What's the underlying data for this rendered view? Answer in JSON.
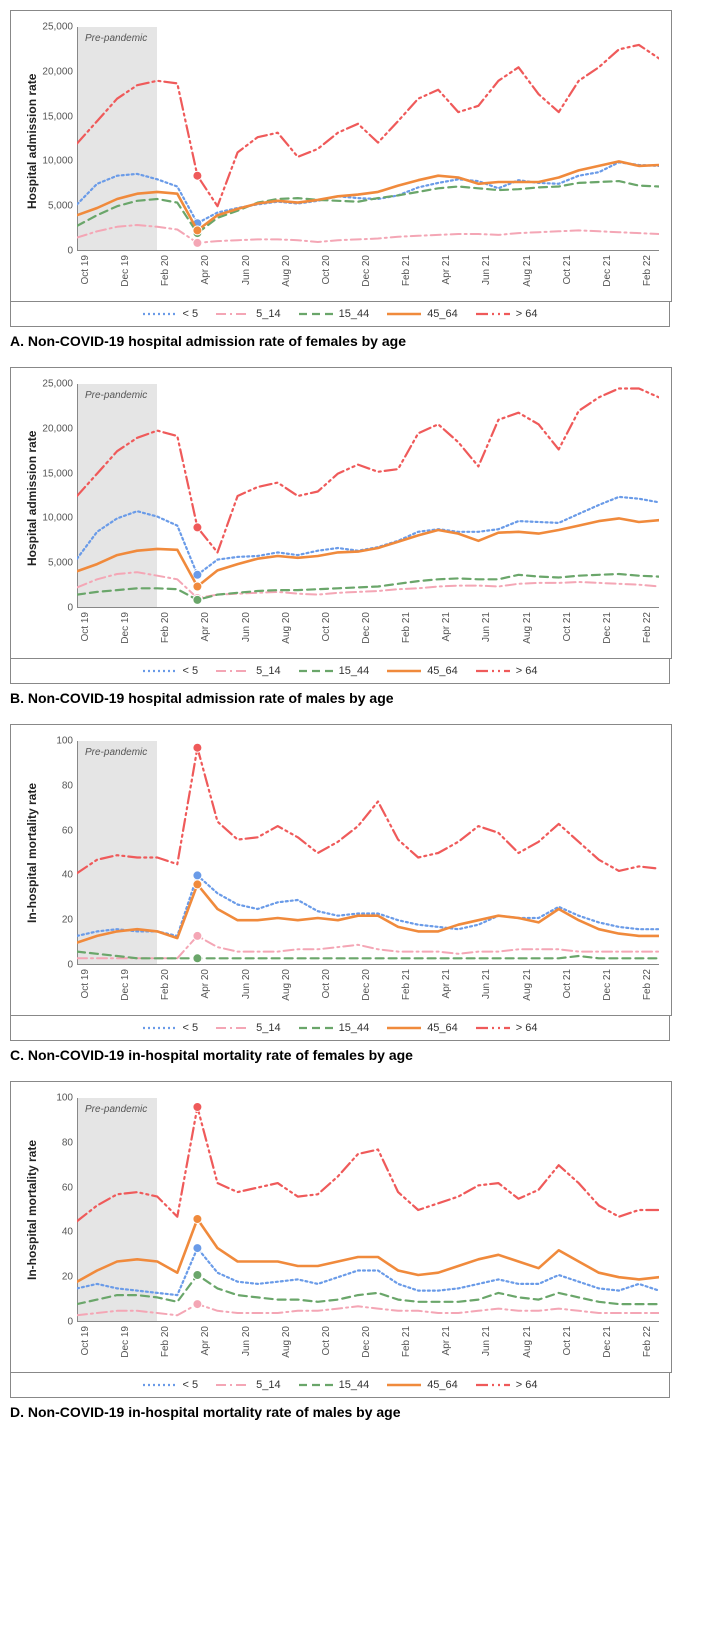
{
  "x_labels": [
    "Oct 19",
    "Dec 19",
    "Feb 20",
    "Apr 20",
    "Jun 20",
    "Aug 20",
    "Oct 20",
    "Dec 20",
    "Feb 21",
    "Apr 21",
    "Jun 21",
    "Aug 21",
    "Oct 21",
    "Dec 21",
    "Feb 22"
  ],
  "x_count": 30,
  "pre_pandemic_label": "Pre-pandemic",
  "pre_pandemic_end_index": 4,
  "series_meta": {
    "lt5": {
      "label": "< 5",
      "color": "#6a9be8",
      "style": "dot",
      "width": 2.2
    },
    "5_14": {
      "label": "5_14",
      "color": "#f4a6b5",
      "style": "dashdot",
      "width": 2
    },
    "15_44": {
      "label": "15_44",
      "color": "#6aa66a",
      "style": "dash",
      "width": 2.2
    },
    "45_64": {
      "label": "45_64",
      "color": "#f08a3c",
      "style": "solid",
      "width": 2.6
    },
    "gt64": {
      "label": "> 64",
      "color": "#ef5a5a",
      "style": "dashdot2",
      "width": 2.2
    }
  },
  "charts": [
    {
      "id": "A",
      "caption": "A. Non-COVID-19 hospital admission rate of females by age",
      "y_axis_title": "Hospital admission rate",
      "ylim": [
        0,
        25000
      ],
      "y_ticks": [
        0,
        5000,
        10000,
        15000,
        20000,
        25000
      ],
      "y_tick_format": "comma",
      "marker_index": 6,
      "series": {
        "lt5": [
          5200,
          7500,
          8400,
          8600,
          8000,
          7200,
          3100,
          4300,
          4800,
          5200,
          5500,
          5300,
          5600,
          6100,
          5900,
          5800,
          6200,
          7100,
          7600,
          8000,
          7800,
          7000,
          7900,
          7600,
          7500,
          8400,
          8800,
          9900,
          9600,
          9500
        ],
        "5_14": [
          1500,
          2200,
          2700,
          2900,
          2700,
          2400,
          900,
          1100,
          1200,
          1300,
          1300,
          1200,
          1000,
          1200,
          1300,
          1400,
          1600,
          1700,
          1800,
          1900,
          1900,
          1800,
          2000,
          2100,
          2200,
          2300,
          2200,
          2100,
          2000,
          1900
        ],
        "15_44": [
          2800,
          4000,
          5000,
          5600,
          5800,
          5400,
          2000,
          3700,
          4500,
          5400,
          5800,
          5900,
          5700,
          5600,
          5500,
          5900,
          6200,
          6600,
          7000,
          7200,
          7000,
          6800,
          6900,
          7100,
          7200,
          7600,
          7700,
          7800,
          7300,
          7200
        ],
        "45_64": [
          4000,
          4800,
          5800,
          6400,
          6600,
          6400,
          2300,
          4000,
          4700,
          5300,
          5600,
          5400,
          5700,
          6100,
          6300,
          6600,
          7300,
          7900,
          8400,
          8200,
          7500,
          7700,
          7700,
          7700,
          8200,
          9000,
          9500,
          10000,
          9500,
          9600
        ],
        "gt64": [
          12000,
          14500,
          17000,
          18500,
          19000,
          18700,
          8400,
          5000,
          11000,
          12700,
          13200,
          10500,
          11400,
          13200,
          14200,
          12100,
          14500,
          17000,
          18000,
          15500,
          16200,
          19000,
          20500,
          17500,
          15500,
          19000,
          20500,
          22500,
          23000,
          21500
        ]
      }
    },
    {
      "id": "B",
      "caption": "B. Non-COVID-19 hospital admission rate of males by age",
      "y_axis_title": "Hospital admission rate",
      "ylim": [
        0,
        25000
      ],
      "y_ticks": [
        0,
        5000,
        10000,
        15000,
        20000,
        25000
      ],
      "y_tick_format": "comma",
      "marker_index": 6,
      "series": {
        "lt5": [
          5500,
          8500,
          10000,
          10800,
          10200,
          9200,
          3700,
          5400,
          5700,
          5800,
          6200,
          5900,
          6400,
          6700,
          6400,
          6800,
          7500,
          8500,
          8800,
          8500,
          8500,
          8800,
          9700,
          9600,
          9500,
          10500,
          11500,
          12400,
          12200,
          11800
        ],
        "5_14": [
          2300,
          3200,
          3800,
          4000,
          3600,
          3200,
          1100,
          1500,
          1600,
          1700,
          1800,
          1600,
          1500,
          1700,
          1800,
          1900,
          2100,
          2200,
          2400,
          2500,
          2500,
          2400,
          2700,
          2800,
          2800,
          2900,
          2800,
          2700,
          2600,
          2400
        ],
        "15_44": [
          1500,
          1800,
          2000,
          2200,
          2200,
          2100,
          900,
          1500,
          1700,
          1900,
          2000,
          2000,
          2100,
          2200,
          2300,
          2400,
          2700,
          3000,
          3200,
          3300,
          3200,
          3200,
          3700,
          3500,
          3400,
          3600,
          3700,
          3800,
          3600,
          3500
        ],
        "45_64": [
          4100,
          4900,
          5900,
          6400,
          6600,
          6500,
          2400,
          4200,
          4900,
          5500,
          5800,
          5600,
          5800,
          6200,
          6300,
          6700,
          7400,
          8100,
          8700,
          8300,
          7500,
          8400,
          8500,
          8300,
          8700,
          9200,
          9700,
          10000,
          9600,
          9800
        ],
        "gt64": [
          12500,
          15000,
          17500,
          19000,
          19800,
          19200,
          9000,
          6200,
          12500,
          13500,
          14000,
          12500,
          13000,
          15000,
          16000,
          15200,
          15500,
          19500,
          20500,
          18500,
          15800,
          21000,
          21800,
          20500,
          17700,
          22000,
          23500,
          24500,
          24500,
          23500
        ]
      }
    },
    {
      "id": "C",
      "caption": "C. Non-COVID-19 in-hospital mortality rate of females by age",
      "y_axis_title": "In-hospital mortality rate",
      "ylim": [
        0,
        100
      ],
      "y_ticks": [
        0,
        20,
        40,
        60,
        80,
        100
      ],
      "y_tick_format": "plain",
      "marker_index": 6,
      "series": {
        "lt5": [
          13,
          15,
          16,
          15,
          15,
          13,
          40,
          32,
          27,
          25,
          28,
          29,
          24,
          22,
          23,
          23,
          20,
          18,
          17,
          16,
          18,
          22,
          21,
          21,
          26,
          22,
          19,
          17,
          16,
          16
        ],
        "5_14": [
          3,
          3,
          3,
          3,
          3,
          3,
          13,
          8,
          6,
          6,
          6,
          7,
          7,
          8,
          9,
          7,
          6,
          6,
          6,
          5,
          6,
          6,
          7,
          7,
          7,
          6,
          6,
          6,
          6,
          6
        ],
        "15_44": [
          6,
          5,
          4,
          3,
          3,
          3,
          3,
          3,
          3,
          3,
          3,
          3,
          3,
          3,
          3,
          3,
          3,
          3,
          3,
          3,
          3,
          3,
          3,
          3,
          3,
          4,
          3,
          3,
          3,
          3
        ],
        "45_64": [
          10,
          13,
          15,
          16,
          15,
          12,
          36,
          25,
          20,
          20,
          21,
          20,
          21,
          20,
          22,
          22,
          17,
          15,
          15,
          18,
          20,
          22,
          21,
          19,
          25,
          20,
          16,
          14,
          13,
          13
        ],
        "gt64": [
          41,
          47,
          49,
          48,
          48,
          45,
          97,
          64,
          56,
          57,
          62,
          57,
          50,
          55,
          62,
          73,
          56,
          48,
          50,
          55,
          62,
          59,
          50,
          55,
          63,
          55,
          47,
          42,
          44,
          43
        ]
      }
    },
    {
      "id": "D",
      "caption": "D. Non-COVID-19 in-hospital mortality rate of males by age",
      "y_axis_title": "In-hospital mortality rate",
      "ylim": [
        0,
        100
      ],
      "y_ticks": [
        0,
        20,
        40,
        60,
        80,
        100
      ],
      "y_tick_format": "plain",
      "marker_index": 6,
      "series": {
        "lt5": [
          15,
          17,
          15,
          14,
          13,
          12,
          33,
          22,
          18,
          17,
          18,
          19,
          17,
          20,
          23,
          23,
          17,
          14,
          14,
          15,
          17,
          19,
          17,
          17,
          21,
          18,
          15,
          14,
          17,
          14
        ],
        "5_14": [
          3,
          4,
          5,
          5,
          4,
          3,
          8,
          5,
          4,
          4,
          4,
          5,
          5,
          6,
          7,
          6,
          5,
          5,
          4,
          4,
          5,
          6,
          5,
          5,
          6,
          5,
          4,
          4,
          4,
          4
        ],
        "15_44": [
          8,
          10,
          12,
          12,
          11,
          9,
          21,
          15,
          12,
          11,
          10,
          10,
          9,
          10,
          12,
          13,
          10,
          9,
          9,
          9,
          10,
          13,
          11,
          10,
          13,
          11,
          9,
          8,
          8,
          8
        ],
        "45_64": [
          18,
          23,
          27,
          28,
          27,
          22,
          46,
          33,
          27,
          27,
          27,
          25,
          25,
          27,
          29,
          29,
          23,
          21,
          22,
          25,
          28,
          30,
          27,
          24,
          32,
          27,
          22,
          20,
          19,
          20
        ],
        "gt64": [
          45,
          52,
          57,
          58,
          56,
          47,
          96,
          62,
          58,
          60,
          62,
          56,
          57,
          65,
          75,
          77,
          58,
          50,
          53,
          56,
          61,
          62,
          55,
          59,
          70,
          62,
          52,
          47,
          50,
          50
        ]
      }
    }
  ]
}
